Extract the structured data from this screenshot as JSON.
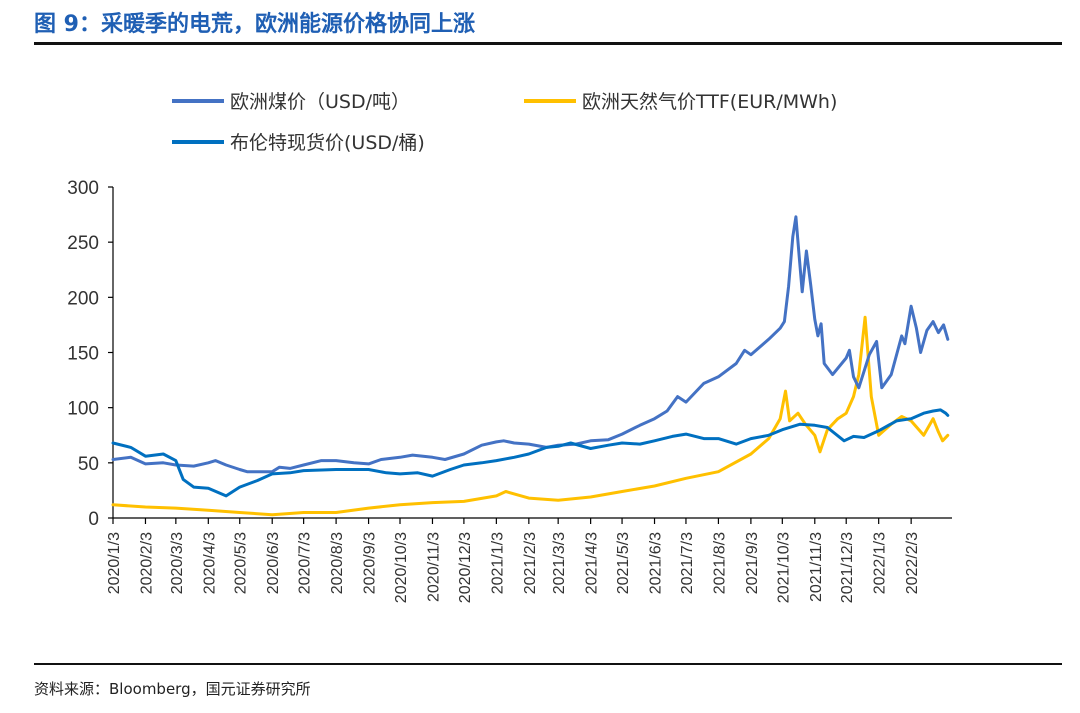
{
  "header": {
    "title": "图 9：采暖季的电荒，欧洲能源价格协同上涨"
  },
  "footer": {
    "source": "资料来源：Bloomberg，国元证券研究所"
  },
  "chart_data": {
    "type": "line",
    "title": "图 9：采暖季的电荒，欧洲能源价格协同上涨",
    "xlabel": "",
    "ylabel": "",
    "ylim": [
      0,
      300
    ],
    "yticks": [
      0,
      50,
      100,
      150,
      200,
      250,
      300
    ],
    "xticks": [
      "2020/1/3",
      "2020/2/3",
      "2020/3/3",
      "2020/4/3",
      "2020/5/3",
      "2020/6/3",
      "2020/7/3",
      "2020/8/3",
      "2020/9/3",
      "2020/10/3",
      "2020/11/3",
      "2020/12/3",
      "2021/1/3",
      "2021/2/3",
      "2021/3/3",
      "2021/4/3",
      "2021/5/3",
      "2021/6/3",
      "2021/7/3",
      "2021/8/3",
      "2021/9/3",
      "2021/10/3",
      "2021/11/3",
      "2021/12/3",
      "2022/1/3",
      "2022/2/3"
    ],
    "xlim": [
      "2020/1/3",
      "2022/3/14"
    ],
    "grid": false,
    "legend": "top",
    "series": [
      {
        "name": "欧洲煤价（USD/吨）",
        "color": "#4472c4",
        "points": [
          [
            "2020/1/3",
            53
          ],
          [
            "2020/1/20",
            55
          ],
          [
            "2020/2/3",
            49
          ],
          [
            "2020/2/20",
            50
          ],
          [
            "2020/3/3",
            48
          ],
          [
            "2020/3/20",
            47
          ],
          [
            "2020/4/3",
            50
          ],
          [
            "2020/4/10",
            52
          ],
          [
            "2020/4/20",
            48
          ],
          [
            "2020/5/3",
            44
          ],
          [
            "2020/5/10",
            42
          ],
          [
            "2020/5/20",
            42
          ],
          [
            "2020/6/3",
            42
          ],
          [
            "2020/6/10",
            46
          ],
          [
            "2020/6/20",
            45
          ],
          [
            "2020/7/3",
            48
          ],
          [
            "2020/7/20",
            52
          ],
          [
            "2020/8/3",
            52
          ],
          [
            "2020/8/20",
            50
          ],
          [
            "2020/9/3",
            49
          ],
          [
            "2020/9/15",
            53
          ],
          [
            "2020/10/3",
            55
          ],
          [
            "2020/10/15",
            57
          ],
          [
            "2020/11/3",
            55
          ],
          [
            "2020/11/15",
            53
          ],
          [
            "2020/12/3",
            58
          ],
          [
            "2020/12/20",
            66
          ],
          [
            "2021/1/3",
            69
          ],
          [
            "2021/1/10",
            70
          ],
          [
            "2021/1/20",
            68
          ],
          [
            "2021/2/3",
            67
          ],
          [
            "2021/2/20",
            64
          ],
          [
            "2021/3/3",
            66
          ],
          [
            "2021/3/20",
            67
          ],
          [
            "2021/4/3",
            70
          ],
          [
            "2021/4/20",
            71
          ],
          [
            "2021/5/3",
            76
          ],
          [
            "2021/5/20",
            84
          ],
          [
            "2021/6/3",
            90
          ],
          [
            "2021/6/15",
            97
          ],
          [
            "2021/6/25",
            110
          ],
          [
            "2021/7/3",
            105
          ],
          [
            "2021/7/20",
            122
          ],
          [
            "2021/8/3",
            128
          ],
          [
            "2021/8/20",
            140
          ],
          [
            "2021/8/28",
            152
          ],
          [
            "2021/9/3",
            148
          ],
          [
            "2021/9/20",
            162
          ],
          [
            "2021/10/1",
            172
          ],
          [
            "2021/10/5",
            178
          ],
          [
            "2021/10/9",
            210
          ],
          [
            "2021/10/13",
            255
          ],
          [
            "2021/10/16",
            273
          ],
          [
            "2021/10/19",
            238
          ],
          [
            "2021/10/22",
            205
          ],
          [
            "2021/10/26",
            242
          ],
          [
            "2021/10/30",
            212
          ],
          [
            "2021/11/3",
            180
          ],
          [
            "2021/11/6",
            165
          ],
          [
            "2021/11/9",
            176
          ],
          [
            "2021/11/12",
            140
          ],
          [
            "2021/11/20",
            130
          ],
          [
            "2021/12/3",
            145
          ],
          [
            "2021/12/6",
            152
          ],
          [
            "2021/12/10",
            128
          ],
          [
            "2021/12/15",
            118
          ],
          [
            "2021/12/25",
            148
          ],
          [
            "2022/1/1",
            160
          ],
          [
            "2022/1/6",
            118
          ],
          [
            "2022/1/15",
            130
          ],
          [
            "2022/1/25",
            165
          ],
          [
            "2022/1/28",
            158
          ],
          [
            "2022/2/3",
            192
          ],
          [
            "2022/2/8",
            172
          ],
          [
            "2022/2/12",
            150
          ],
          [
            "2022/2/18",
            170
          ],
          [
            "2022/2/24",
            178
          ],
          [
            "2022/3/1",
            168
          ],
          [
            "2022/3/6",
            175
          ],
          [
            "2022/3/10",
            162
          ]
        ]
      },
      {
        "name": "欧洲天然气价TTF(EUR/MWh)",
        "color": "#ffc000",
        "points": [
          [
            "2020/1/3",
            12
          ],
          [
            "2020/2/3",
            10
          ],
          [
            "2020/3/3",
            9
          ],
          [
            "2020/4/3",
            7
          ],
          [
            "2020/5/3",
            5
          ],
          [
            "2020/6/3",
            3
          ],
          [
            "2020/7/3",
            5
          ],
          [
            "2020/8/3",
            5
          ],
          [
            "2020/9/3",
            9
          ],
          [
            "2020/10/3",
            12
          ],
          [
            "2020/11/3",
            14
          ],
          [
            "2020/12/3",
            15
          ],
          [
            "2021/1/3",
            20
          ],
          [
            "2021/1/12",
            24
          ],
          [
            "2021/2/3",
            18
          ],
          [
            "2021/3/3",
            16
          ],
          [
            "2021/4/3",
            19
          ],
          [
            "2021/5/3",
            24
          ],
          [
            "2021/6/3",
            29
          ],
          [
            "2021/7/3",
            36
          ],
          [
            "2021/8/3",
            42
          ],
          [
            "2021/9/3",
            58
          ],
          [
            "2021/9/20",
            72
          ],
          [
            "2021/10/1",
            90
          ],
          [
            "2021/10/6",
            115
          ],
          [
            "2021/10/10",
            88
          ],
          [
            "2021/10/18",
            95
          ],
          [
            "2021/10/25",
            85
          ],
          [
            "2021/11/3",
            75
          ],
          [
            "2021/11/8",
            60
          ],
          [
            "2021/11/15",
            80
          ],
          [
            "2021/11/25",
            90
          ],
          [
            "2021/12/3",
            95
          ],
          [
            "2021/12/10",
            110
          ],
          [
            "2021/12/15",
            130
          ],
          [
            "2021/12/21",
            182
          ],
          [
            "2021/12/27",
            110
          ],
          [
            "2022/1/3",
            75
          ],
          [
            "2022/1/15",
            85
          ],
          [
            "2022/1/25",
            92
          ],
          [
            "2022/2/3",
            88
          ],
          [
            "2022/2/15",
            75
          ],
          [
            "2022/2/24",
            90
          ],
          [
            "2022/3/1",
            78
          ],
          [
            "2022/3/5",
            70
          ],
          [
            "2022/3/10",
            75
          ]
        ]
      },
      {
        "name": "布伦特现货价(USD/桶)",
        "color": "#0070c0",
        "points": [
          [
            "2020/1/3",
            68
          ],
          [
            "2020/1/20",
            64
          ],
          [
            "2020/2/3",
            56
          ],
          [
            "2020/2/20",
            58
          ],
          [
            "2020/3/3",
            52
          ],
          [
            "2020/3/10",
            35
          ],
          [
            "2020/3/20",
            28
          ],
          [
            "2020/4/3",
            27
          ],
          [
            "2020/4/20",
            20
          ],
          [
            "2020/5/3",
            28
          ],
          [
            "2020/5/20",
            34
          ],
          [
            "2020/6/3",
            40
          ],
          [
            "2020/6/20",
            41
          ],
          [
            "2020/7/3",
            43
          ],
          [
            "2020/8/3",
            44
          ],
          [
            "2020/9/3",
            44
          ],
          [
            "2020/9/20",
            41
          ],
          [
            "2020/10/3",
            40
          ],
          [
            "2020/10/20",
            41
          ],
          [
            "2020/11/3",
            38
          ],
          [
            "2020/11/20",
            44
          ],
          [
            "2020/12/3",
            48
          ],
          [
            "2020/12/20",
            50
          ],
          [
            "2021/1/3",
            52
          ],
          [
            "2021/1/20",
            55
          ],
          [
            "2021/2/3",
            58
          ],
          [
            "2021/2/20",
            64
          ],
          [
            "2021/3/3",
            65
          ],
          [
            "2021/3/15",
            68
          ],
          [
            "2021/4/3",
            63
          ],
          [
            "2021/4/20",
            66
          ],
          [
            "2021/5/3",
            68
          ],
          [
            "2021/5/20",
            67
          ],
          [
            "2021/6/3",
            70
          ],
          [
            "2021/6/20",
            74
          ],
          [
            "2021/7/3",
            76
          ],
          [
            "2021/7/20",
            72
          ],
          [
            "2021/8/3",
            72
          ],
          [
            "2021/8/20",
            67
          ],
          [
            "2021/9/3",
            72
          ],
          [
            "2021/9/20",
            75
          ],
          [
            "2021/10/3",
            80
          ],
          [
            "2021/10/20",
            85
          ],
          [
            "2021/11/3",
            84
          ],
          [
            "2021/11/15",
            82
          ],
          [
            "2021/12/1",
            70
          ],
          [
            "2021/12/10",
            74
          ],
          [
            "2021/12/20",
            73
          ],
          [
            "2022/1/3",
            79
          ],
          [
            "2022/1/20",
            88
          ],
          [
            "2022/2/3",
            90
          ],
          [
            "2022/2/15",
            95
          ],
          [
            "2022/2/24",
            97
          ],
          [
            "2022/3/3",
            98
          ],
          [
            "2022/3/8",
            95
          ],
          [
            "2022/3/10",
            93
          ]
        ]
      }
    ]
  }
}
